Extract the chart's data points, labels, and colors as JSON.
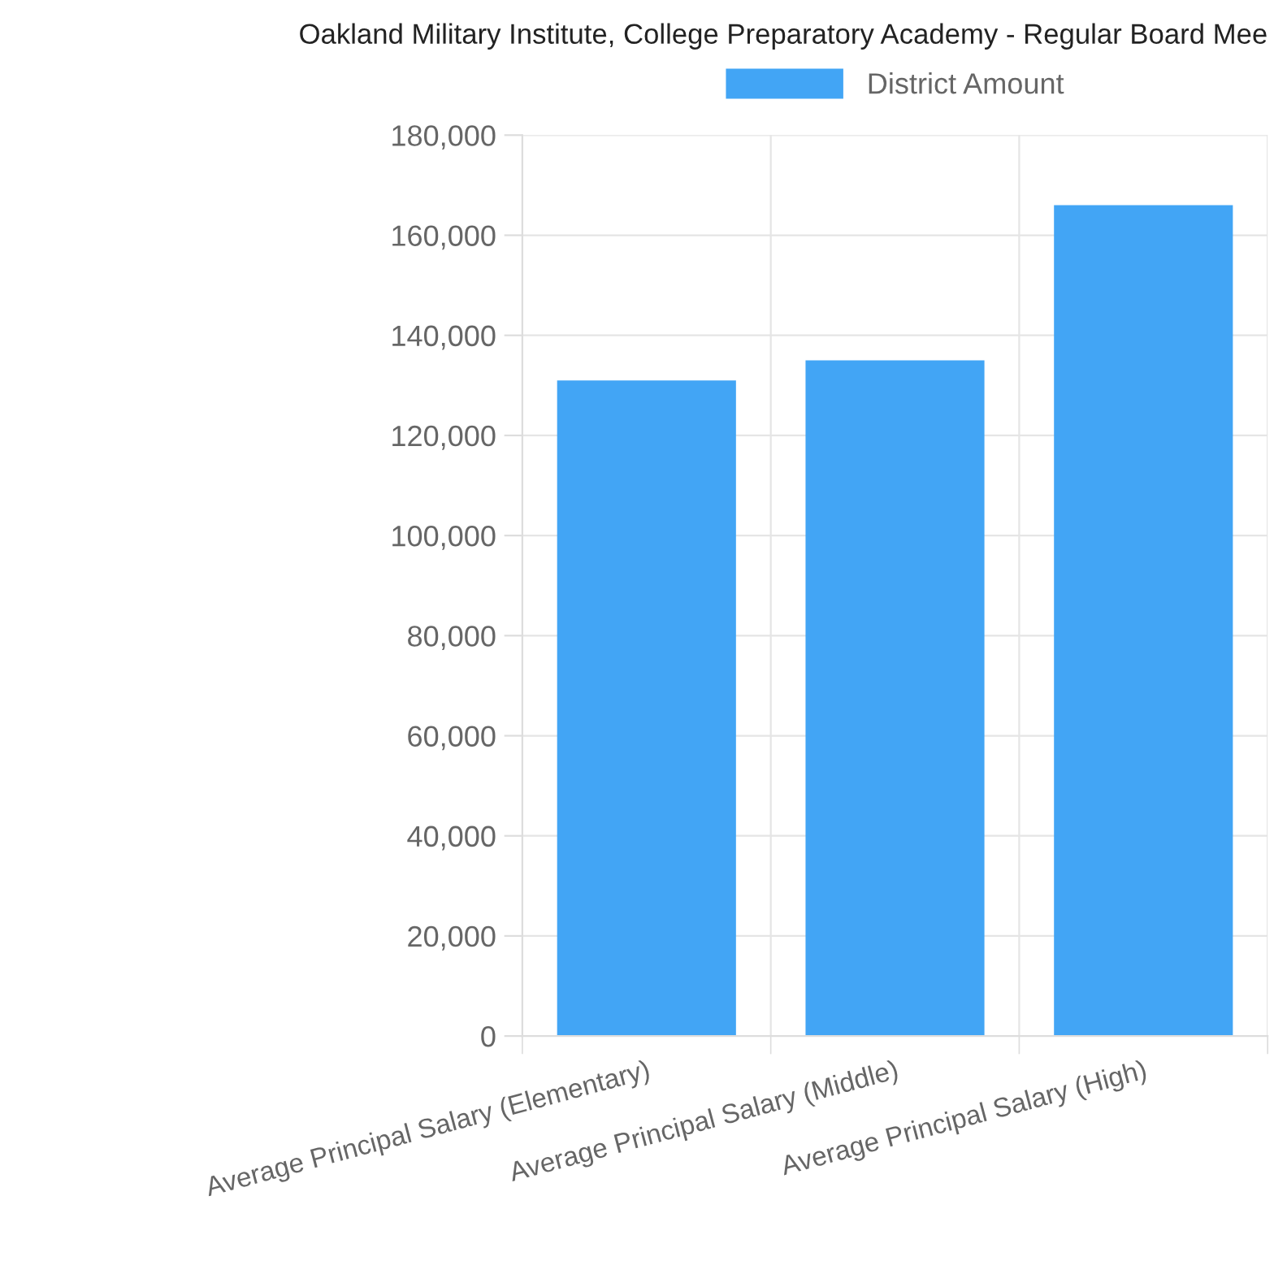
{
  "chart_data": {
    "type": "bar",
    "title": "Oakland Military Institute, College Preparatory Academy - Regular Board Mee",
    "categories": [
      "Average Principal Salary (Elementary)",
      "Average Principal Salary (Middle)",
      "Average Principal Salary (High)"
    ],
    "series": [
      {
        "name": "District Amount",
        "color": "#42a5f5",
        "values": [
          131000,
          135000,
          166000
        ]
      }
    ],
    "ylim": [
      0,
      180000
    ],
    "yticks": [
      {
        "value": 0,
        "label": "0"
      },
      {
        "value": 20000,
        "label": "20,000"
      },
      {
        "value": 40000,
        "label": "40,000"
      },
      {
        "value": 60000,
        "label": "60,000"
      },
      {
        "value": 80000,
        "label": "80,000"
      },
      {
        "value": 100000,
        "label": "100,000"
      },
      {
        "value": 120000,
        "label": "120,000"
      },
      {
        "value": 140000,
        "label": "140,000"
      },
      {
        "value": 160000,
        "label": "160,000"
      },
      {
        "value": 180000,
        "label": "180,000"
      }
    ],
    "grid": true,
    "legend": "top"
  }
}
